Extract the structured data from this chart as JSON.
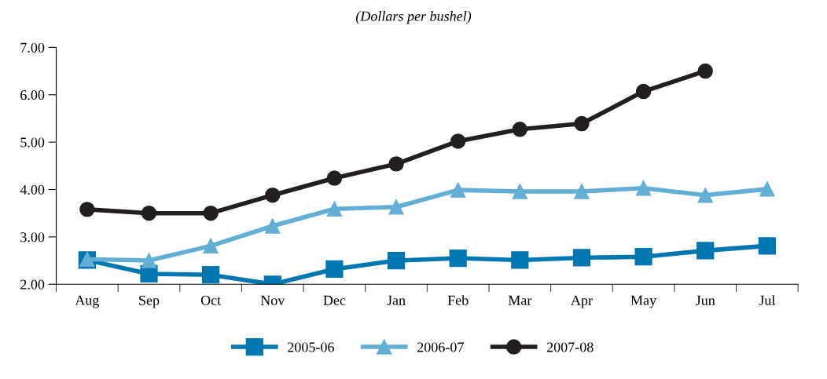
{
  "chart_data": {
    "type": "line",
    "subtitle": "(Dollars per bushel)",
    "categories": [
      "Aug",
      "Sep",
      "Oct",
      "Nov",
      "Dec",
      "Jan",
      "Feb",
      "Mar",
      "Apr",
      "May",
      "Jun",
      "Jul"
    ],
    "series": [
      {
        "name": "2005-06",
        "color": "#0077b0",
        "marker": "square",
        "values": [
          2.51,
          2.22,
          2.2,
          2.0,
          2.32,
          2.5,
          2.55,
          2.51,
          2.56,
          2.58,
          2.71,
          2.81
        ]
      },
      {
        "name": "2006-07",
        "color": "#62aed4",
        "marker": "triangle",
        "values": [
          2.53,
          2.5,
          2.81,
          3.23,
          3.59,
          3.63,
          3.99,
          3.96,
          3.96,
          4.03,
          3.88,
          4.01
        ]
      },
      {
        "name": "2007-08",
        "color": "#231f20",
        "marker": "circle",
        "values": [
          3.58,
          3.5,
          3.5,
          3.88,
          4.24,
          4.54,
          5.02,
          5.27,
          5.39,
          6.07,
          6.5,
          null
        ]
      }
    ],
    "ylim": [
      2,
      7
    ],
    "yticks": [
      {
        "value": 2,
        "label": "2.00"
      },
      {
        "value": 3,
        "label": "3.00"
      },
      {
        "value": 4,
        "label": "4.00"
      },
      {
        "value": 5,
        "label": "5.00"
      },
      {
        "value": 6,
        "label": "6.00"
      },
      {
        "value": 7,
        "label": "7.00"
      }
    ],
    "grid": false,
    "legend": "bottom",
    "line_style": "solid"
  }
}
